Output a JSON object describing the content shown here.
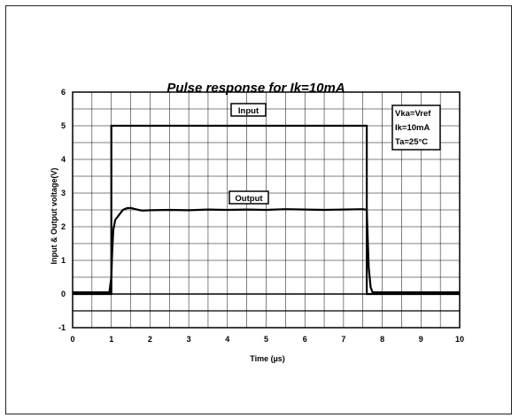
{
  "chart_data": {
    "type": "line",
    "title": "Pulse response for Ik=10mA",
    "xlabel": "Time (µs)",
    "ylabel": "Input & Output voltage(V)",
    "xlim": [
      0,
      10
    ],
    "ylim": [
      -1,
      6
    ],
    "x_ticks": [
      "0",
      "1",
      "2",
      "3",
      "4",
      "5",
      "6",
      "7",
      "8",
      "9",
      "10"
    ],
    "y_ticks": [
      "-1",
      "0",
      "1",
      "2",
      "3",
      "4",
      "5",
      "6"
    ],
    "grid": true,
    "series": [
      {
        "name": "Input",
        "x": [
          0,
          1.0,
          1.0,
          7.6,
          7.6,
          10
        ],
        "y": [
          0.0,
          0.0,
          5.0,
          5.0,
          0.0,
          0.0
        ]
      },
      {
        "name": "Output",
        "x": [
          0,
          0.5,
          0.95,
          1.0,
          1.02,
          1.05,
          1.1,
          1.2,
          1.3,
          1.4,
          1.5,
          1.6,
          1.7,
          1.8,
          2.0,
          2.5,
          3.0,
          3.5,
          4.0,
          4.5,
          5.0,
          5.5,
          6.0,
          6.5,
          7.0,
          7.5,
          7.6,
          7.62,
          7.65,
          7.7,
          7.75,
          8.0,
          9.0,
          10
        ],
        "y": [
          0.05,
          0.05,
          0.05,
          0.5,
          1.2,
          1.9,
          2.2,
          2.35,
          2.5,
          2.55,
          2.56,
          2.53,
          2.5,
          2.48,
          2.49,
          2.5,
          2.49,
          2.51,
          2.5,
          2.51,
          2.5,
          2.52,
          2.51,
          2.5,
          2.51,
          2.52,
          2.5,
          1.8,
          0.8,
          0.2,
          0.05,
          0.05,
          0.05,
          0.05
        ]
      }
    ],
    "annotations": {
      "input_label": "Input",
      "output_label": "Output",
      "conditions": [
        "Vka=Vref",
        "Ik=10mA",
        "Ta=25°C"
      ]
    },
    "extra_horizontal_line_y": -0.5
  }
}
